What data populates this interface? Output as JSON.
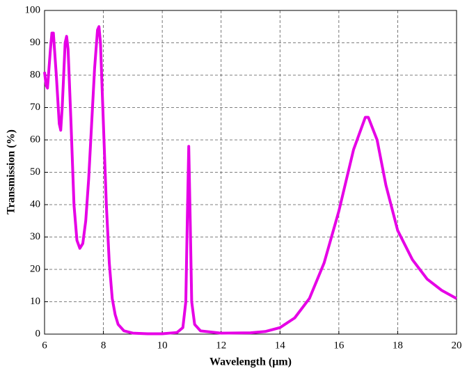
{
  "chart_data": {
    "type": "line",
    "xlabel": "Wavelength (μm)",
    "ylabel": "Transmission (%)",
    "x": [
      6.0,
      6.05,
      6.1,
      6.2,
      6.25,
      6.3,
      6.4,
      6.5,
      6.55,
      6.6,
      6.7,
      6.75,
      6.8,
      6.9,
      7.0,
      7.1,
      7.2,
      7.3,
      7.4,
      7.5,
      7.6,
      7.7,
      7.8,
      7.85,
      7.9,
      8.0,
      8.1,
      8.2,
      8.3,
      8.4,
      8.5,
      8.7,
      9.0,
      9.5,
      10.0,
      10.5,
      10.7,
      10.8,
      10.85,
      10.9,
      10.95,
      11.0,
      11.1,
      11.3,
      12.0,
      13.0,
      13.5,
      14.0,
      14.5,
      15.0,
      15.5,
      16.0,
      16.5,
      16.9,
      17.0,
      17.3,
      17.6,
      18.0,
      18.5,
      19.0,
      19.5,
      20.0
    ],
    "values": [
      81,
      77,
      76,
      88,
      93,
      93,
      80,
      65,
      63,
      70,
      90,
      92,
      88,
      65,
      40,
      29,
      26.5,
      28,
      35,
      48,
      65,
      82,
      94,
      95,
      90,
      65,
      40,
      22,
      11,
      6,
      3,
      1,
      0.3,
      0.1,
      0.1,
      0.5,
      2,
      10,
      35,
      58,
      35,
      10,
      3,
      1,
      0.3,
      0.4,
      0.8,
      2,
      5,
      11,
      22,
      38,
      57,
      67,
      67,
      60,
      46,
      32,
      23,
      17,
      13.5,
      11
    ],
    "color": "#e600e6",
    "xlim": [
      6,
      20
    ],
    "xticks": [
      6,
      8,
      10,
      12,
      14,
      16,
      18,
      20
    ],
    "ylim": [
      0,
      100
    ],
    "yticks": [
      0,
      10,
      20,
      30,
      40,
      50,
      60,
      70,
      80,
      90,
      100
    ],
    "grid": true
  }
}
